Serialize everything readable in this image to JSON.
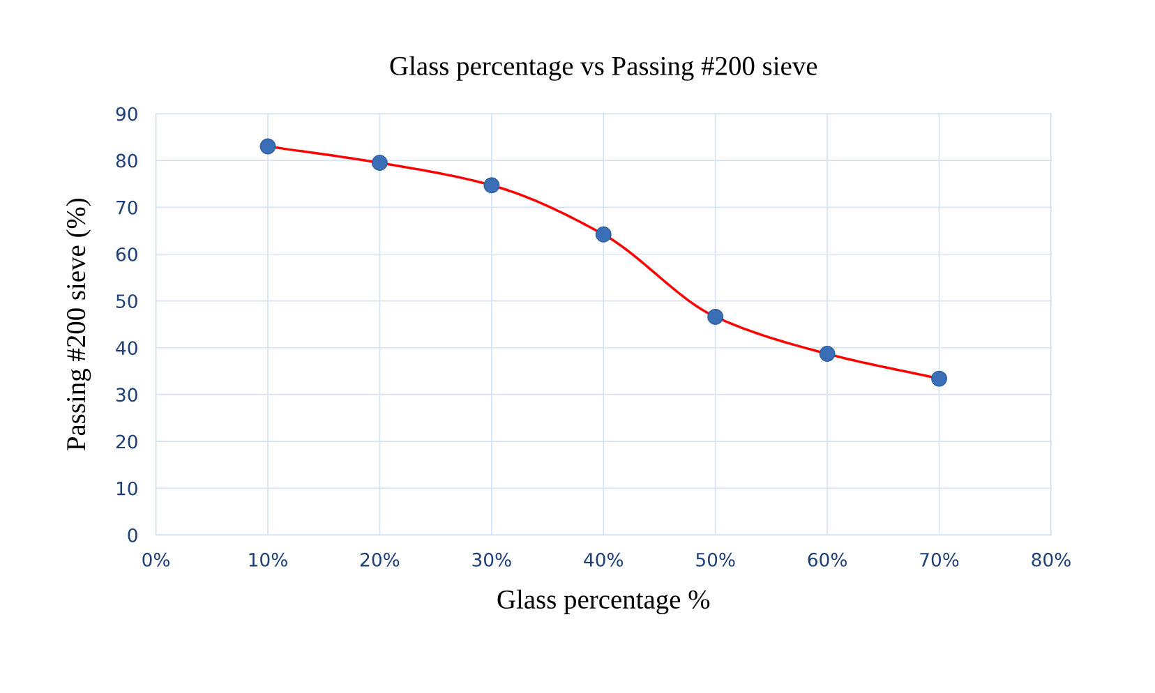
{
  "chart_data": {
    "type": "line",
    "title": "Glass percentage vs Passing #200 sieve",
    "xlabel": "Glass percentage %",
    "ylabel": "Passing #200 sieve (%)",
    "x": [
      10,
      20,
      30,
      40,
      50,
      60,
      70
    ],
    "series": [
      {
        "color": "#ff0000",
        "marker": "circle",
        "colors": [
          "#3a6fb8",
          "#3a6fb8",
          "#3a6fb8",
          "#3a6fb8",
          "#3a6fb8",
          "#3a6fb8",
          "#3a6fb8"
        ],
        "values": [
          83,
          79.5,
          74.7,
          64.2,
          46.6,
          38.7,
          33.4
        ]
      }
    ],
    "xlim": [
      0,
      80
    ],
    "xticks": [
      {
        "value": 0,
        "label": "0%"
      },
      {
        "value": 10,
        "label": "10%"
      },
      {
        "value": 20,
        "label": "20%"
      },
      {
        "value": 30,
        "label": "30%"
      },
      {
        "value": 40,
        "label": "40%"
      },
      {
        "value": 50,
        "label": "50%"
      },
      {
        "value": 60,
        "label": "60%"
      },
      {
        "value": 70,
        "label": "70%"
      },
      {
        "value": 80,
        "label": "80%"
      }
    ],
    "ylim": [
      0,
      90
    ],
    "yticks": [
      0,
      10,
      20,
      30,
      40,
      50,
      60,
      70,
      80,
      90
    ],
    "grid": true,
    "legend": false
  }
}
